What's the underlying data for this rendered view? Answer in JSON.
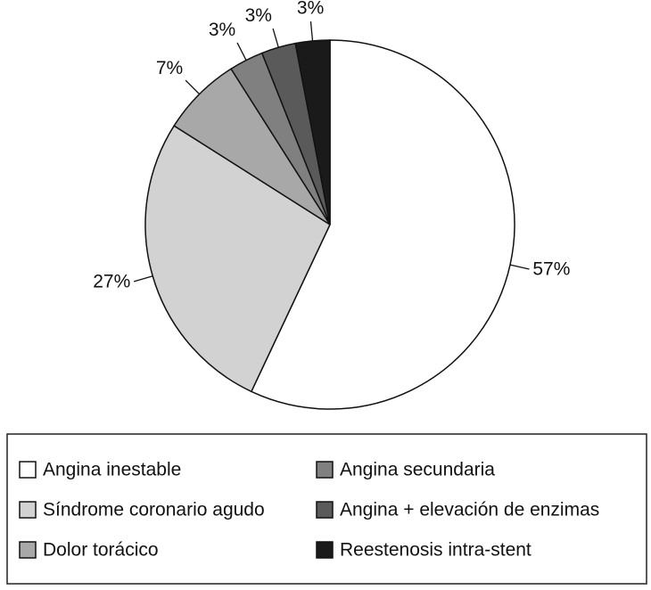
{
  "chart_data": {
    "type": "pie",
    "categories": [
      "Angina inestable",
      "Síndrome coronario agudo",
      "Dolor torácico",
      "Angina secundaria",
      "Angina + elevación de enzimas",
      "Reestenosis intra-stent"
    ],
    "values": [
      57,
      27,
      7,
      3,
      3,
      3
    ],
    "value_labels": [
      "57%",
      "27%",
      "7%",
      "3%",
      "3%",
      "3%"
    ],
    "colors": [
      "#ffffff",
      "#d2d2d2",
      "#a8a8a8",
      "#808080",
      "#5a5a5a",
      "#1a1a1a"
    ],
    "legend": "bottom"
  }
}
